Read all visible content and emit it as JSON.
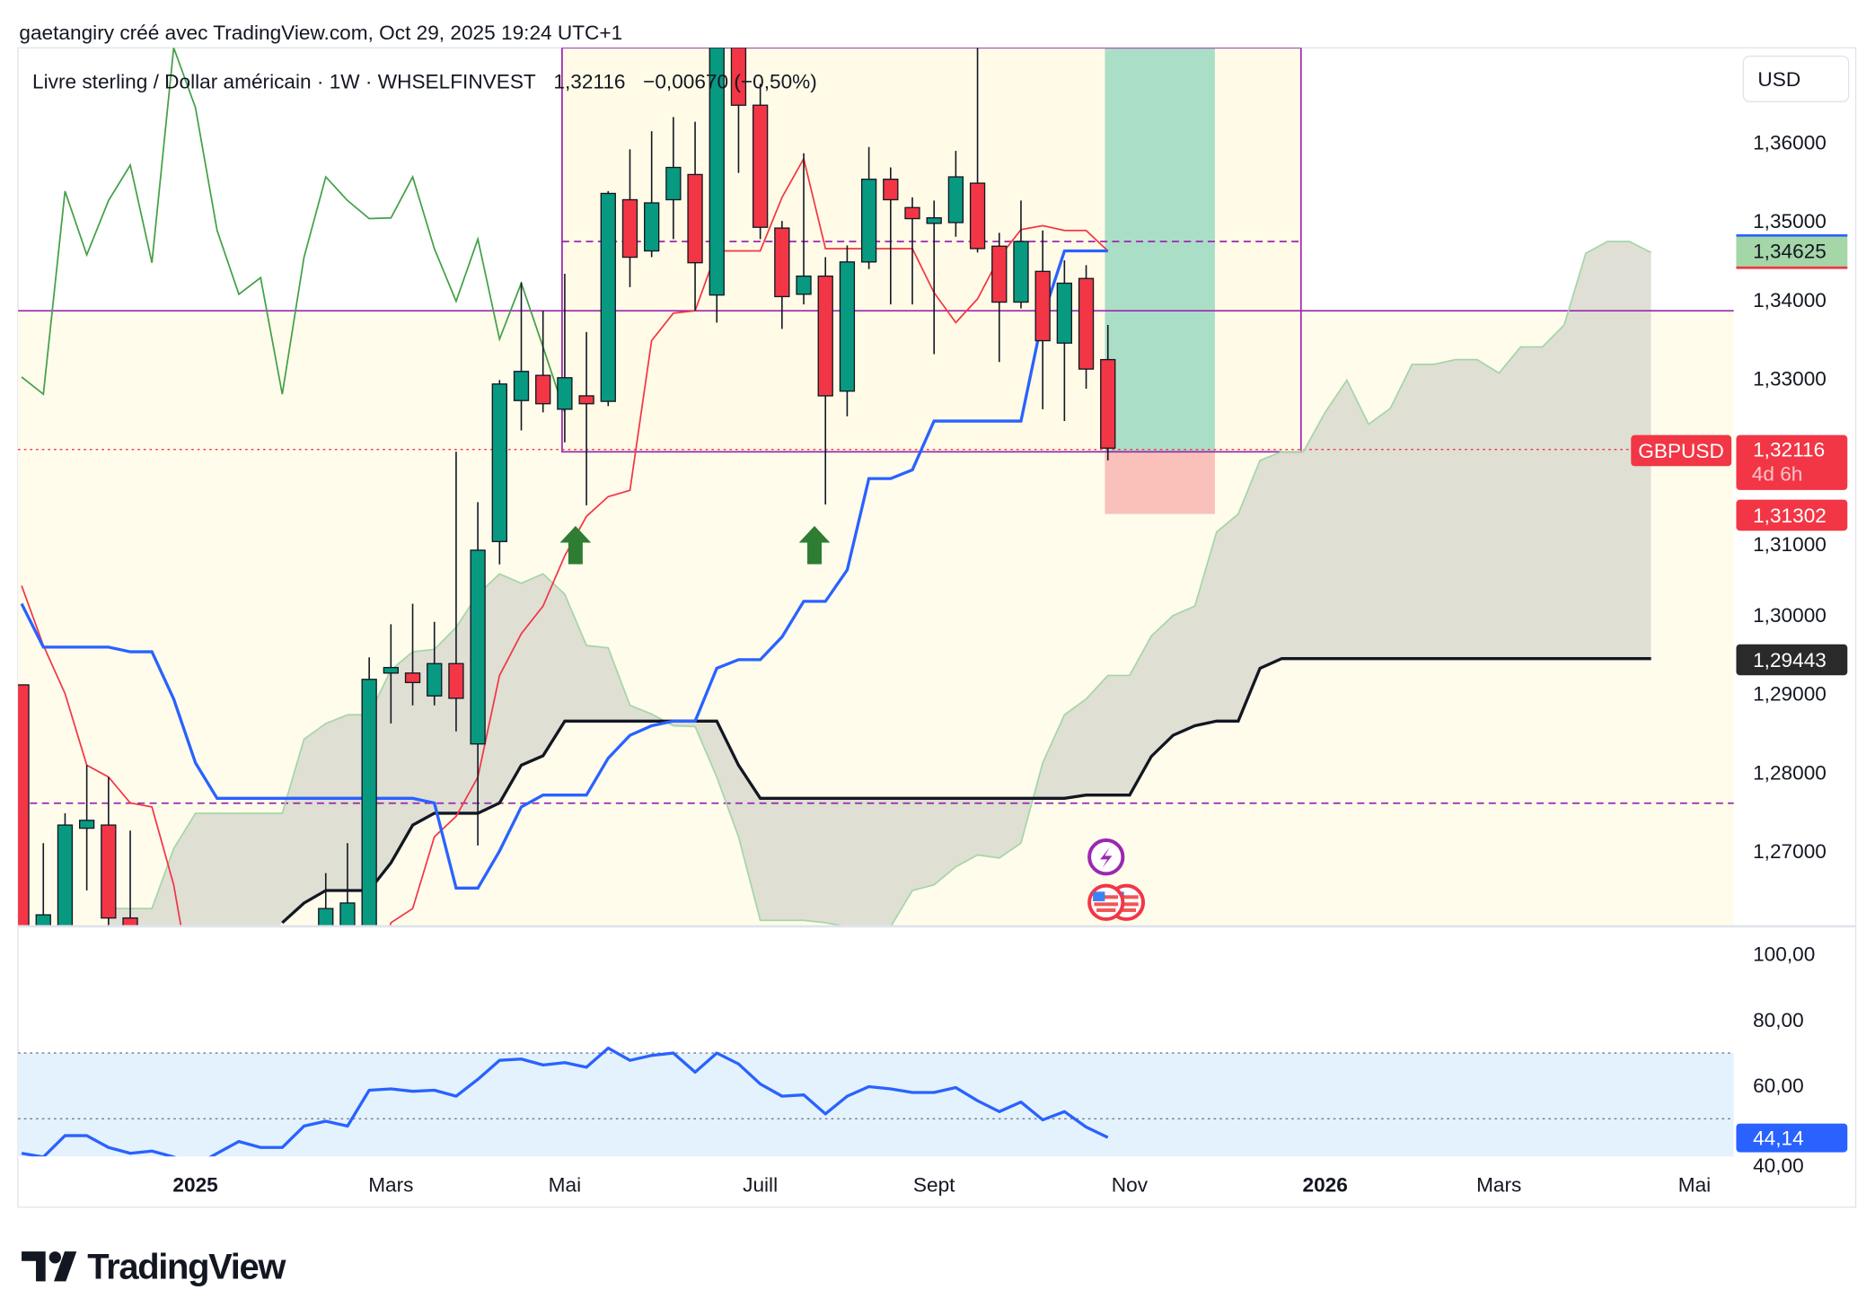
{
  "header": {
    "credit": "gaetangiry créé avec TradingView.com, Oct 29, 2025 19:24 UTC+1",
    "symbol_line": "Livre sterling / Dollar américain · 1W · WHSELFINVEST",
    "last_price": "1,32116",
    "change": "−0,00670 (−0,50%)"
  },
  "price_axis": {
    "currency": "USD",
    "ticks": [
      "1,36000",
      "1,35000",
      "1,34000",
      "1,33000",
      "1,31000",
      "1,30000",
      "1,29000",
      "1,28000",
      "1,27000"
    ],
    "tick_values": [
      1.36,
      1.35,
      1.34,
      1.33,
      1.31,
      1.3,
      1.29,
      1.28,
      1.27
    ],
    "labels": {
      "symbol": "GBPUSD",
      "current": "1,32116",
      "countdown": "4d 6h",
      "stop": "1,31302",
      "target": "1,34625",
      "span_b": "1,29443"
    }
  },
  "rsi_axis": {
    "ticks": [
      "100,00",
      "80,00",
      "60,00",
      "40,00"
    ],
    "tick_values": [
      100,
      80,
      60,
      40
    ],
    "current": "44,14"
  },
  "time_axis": [
    {
      "label": "2025",
      "bold": true,
      "i": 8
    },
    {
      "label": "Mars",
      "bold": false,
      "i": 17
    },
    {
      "label": "Mai",
      "bold": false,
      "i": 25
    },
    {
      "label": "Juill",
      "bold": false,
      "i": 34
    },
    {
      "label": "Sept",
      "bold": false,
      "i": 42
    },
    {
      "label": "Nov",
      "bold": false,
      "i": 51
    },
    {
      "label": "2026",
      "bold": true,
      "i": 60
    },
    {
      "label": "Mars",
      "bold": false,
      "i": 68
    },
    {
      "label": "Mai",
      "bold": false,
      "i": 77
    }
  ],
  "colors": {
    "up": "#089981",
    "down": "#f23645",
    "tenkan": "#f23645",
    "kijun": "#2962ff",
    "chikou": "#43a047",
    "span_a": "#a5d6a7",
    "span_b": "#131722",
    "cloud": "#dcdcd2",
    "rsi": "#2962ff",
    "purple": "#9c27b0"
  },
  "logo": "TradingView",
  "chart_data": {
    "type": "candlestick",
    "symbol": "GBPUSD",
    "interval": "1W",
    "candles": [
      [
        0,
        1.2911,
        1.2911,
        1.25,
        1.25
      ],
      [
        1,
        1.2604,
        1.271,
        1.25,
        1.2619
      ],
      [
        2,
        1.2604,
        1.2748,
        1.25,
        1.2733
      ],
      [
        3,
        1.2729,
        1.2809,
        1.265,
        1.2739
      ],
      [
        4,
        1.2733,
        1.2794,
        1.2604,
        1.2615
      ],
      [
        5,
        1.2615,
        1.2726,
        1.25,
        1.256
      ],
      [
        14,
        1.2604,
        1.2672,
        1.255,
        1.2627
      ],
      [
        15,
        1.2604,
        1.271,
        1.255,
        1.2634
      ],
      [
        16,
        1.2604,
        1.2946,
        1.255,
        1.2918
      ],
      [
        17,
        1.2926,
        1.2988,
        1.2862,
        1.2933
      ],
      [
        18,
        1.2926,
        1.3014,
        1.2885,
        1.2914
      ],
      [
        19,
        1.2897,
        1.2991,
        1.2885,
        1.2938
      ],
      [
        20,
        1.2938,
        1.3207,
        1.2852,
        1.2894
      ],
      [
        21,
        1.2836,
        1.3143,
        1.2707,
        1.3082
      ],
      [
        22,
        1.3093,
        1.3298,
        1.3064,
        1.3293
      ],
      [
        23,
        1.3272,
        1.3422,
        1.3234,
        1.3309
      ],
      [
        24,
        1.3304,
        1.3386,
        1.3257,
        1.3268
      ],
      [
        25,
        1.3261,
        1.3433,
        1.3219,
        1.3301
      ],
      [
        26,
        1.3278,
        1.3359,
        1.3139,
        1.3268
      ],
      [
        27,
        1.3271,
        1.3538,
        1.3265,
        1.3535
      ],
      [
        28,
        1.3527,
        1.3591,
        1.3416,
        1.3454
      ],
      [
        29,
        1.3462,
        1.3614,
        1.3454,
        1.3523
      ],
      [
        30,
        1.3527,
        1.3632,
        1.3477,
        1.3568
      ],
      [
        31,
        1.3559,
        1.3626,
        1.3386,
        1.3447
      ],
      [
        32,
        1.3406,
        1.372,
        1.3371,
        1.372
      ],
      [
        33,
        1.372,
        1.372,
        1.3561,
        1.3647
      ],
      [
        34,
        1.3647,
        1.3674,
        1.3477,
        1.3492
      ],
      [
        35,
        1.3491,
        1.35,
        1.3363,
        1.3404
      ],
      [
        36,
        1.3407,
        1.3586,
        1.3394,
        1.343
      ],
      [
        37,
        1.343,
        1.3454,
        1.314,
        1.3278
      ],
      [
        38,
        1.3284,
        1.3469,
        1.3252,
        1.3448
      ],
      [
        39,
        1.3448,
        1.3594,
        1.3439,
        1.3553
      ],
      [
        40,
        1.3553,
        1.3568,
        1.3394,
        1.3527
      ],
      [
        41,
        1.3517,
        1.353,
        1.3394,
        1.3503
      ],
      [
        42,
        1.3497,
        1.3526,
        1.3331,
        1.3504
      ],
      [
        43,
        1.3498,
        1.3589,
        1.348,
        1.3556
      ],
      [
        44,
        1.3548,
        1.372,
        1.346,
        1.3465
      ],
      [
        45,
        1.3468,
        1.3485,
        1.3321,
        1.3397
      ],
      [
        46,
        1.3397,
        1.3526,
        1.3389,
        1.3474
      ],
      [
        47,
        1.3436,
        1.3488,
        1.3261,
        1.3348
      ],
      [
        48,
        1.3345,
        1.345,
        1.3246,
        1.3421
      ],
      [
        49,
        1.3427,
        1.3444,
        1.3287,
        1.3312
      ],
      [
        50,
        1.3324,
        1.3368,
        1.3196,
        1.32116
      ]
    ],
    "tenkan": [
      [
        0,
        1.3037
      ],
      [
        1,
        1.2961
      ],
      [
        2,
        1.29
      ],
      [
        3,
        1.2809
      ],
      [
        4,
        1.2794
      ],
      [
        5,
        1.2761
      ],
      [
        6,
        1.2756
      ],
      [
        7,
        1.2657
      ],
      [
        8,
        1.25
      ],
      [
        16,
        1.25
      ],
      [
        17,
        1.2609
      ],
      [
        18,
        1.2627
      ],
      [
        19,
        1.2718
      ],
      [
        20,
        1.2744
      ],
      [
        21,
        1.2794
      ],
      [
        22,
        1.2923
      ],
      [
        23,
        1.2976
      ],
      [
        24,
        1.3011
      ],
      [
        25,
        1.3075
      ],
      [
        26,
        1.3125
      ],
      [
        27,
        1.315
      ],
      [
        28,
        1.3158
      ],
      [
        29,
        1.3348
      ],
      [
        30,
        1.3383
      ],
      [
        31,
        1.3386
      ],
      [
        32,
        1.3462
      ],
      [
        33,
        1.3462
      ],
      [
        34,
        1.3462
      ],
      [
        35,
        1.353
      ],
      [
        36,
        1.3579
      ],
      [
        37,
        1.3465
      ],
      [
        38,
        1.3465
      ],
      [
        39,
        1.3465
      ],
      [
        40,
        1.3465
      ],
      [
        41,
        1.3465
      ],
      [
        42,
        1.3409
      ],
      [
        43,
        1.3371
      ],
      [
        44,
        1.3401
      ],
      [
        45,
        1.3454
      ],
      [
        46,
        1.3489
      ],
      [
        47,
        1.3494
      ],
      [
        48,
        1.3488
      ],
      [
        49,
        1.3488
      ],
      [
        50,
        1.3462
      ]
    ],
    "kijun": [
      [
        0,
        1.3014
      ],
      [
        1,
        1.2959
      ],
      [
        4,
        1.2959
      ],
      [
        5,
        1.2953
      ],
      [
        6,
        1.2953
      ],
      [
        7,
        1.2893
      ],
      [
        8,
        1.2812
      ],
      [
        9,
        1.2767
      ],
      [
        18,
        1.2767
      ],
      [
        19,
        1.2761
      ],
      [
        20,
        1.2653
      ],
      [
        21,
        1.2653
      ],
      [
        22,
        1.27
      ],
      [
        23,
        1.2756
      ],
      [
        24,
        1.2771
      ],
      [
        26,
        1.2771
      ],
      [
        27,
        1.2818
      ],
      [
        28,
        1.2847
      ],
      [
        29,
        1.2859
      ],
      [
        30,
        1.2865
      ],
      [
        31,
        1.2865
      ],
      [
        32,
        1.2932
      ],
      [
        33,
        1.2943
      ],
      [
        34,
        1.2943
      ],
      [
        35,
        1.2972
      ],
      [
        36,
        1.3017
      ],
      [
        37,
        1.3017
      ],
      [
        38,
        1.3057
      ],
      [
        39,
        1.3173
      ],
      [
        40,
        1.3173
      ],
      [
        41,
        1.3184
      ],
      [
        42,
        1.3246
      ],
      [
        46,
        1.3246
      ],
      [
        47,
        1.3378
      ],
      [
        48,
        1.3462
      ],
      [
        50,
        1.3462
      ]
    ],
    "chikou": [
      [
        0,
        1.3302
      ],
      [
        1,
        1.328
      ],
      [
        2,
        1.3538
      ],
      [
        3,
        1.3457
      ],
      [
        4,
        1.3526
      ],
      [
        5,
        1.3571
      ],
      [
        6,
        1.3447
      ],
      [
        7,
        1.372
      ],
      [
        8,
        1.3644
      ],
      [
        9,
        1.3488
      ],
      [
        10,
        1.3407
      ],
      [
        11,
        1.3428
      ],
      [
        12,
        1.328
      ],
      [
        13,
        1.3454
      ],
      [
        14,
        1.3556
      ],
      [
        15,
        1.3526
      ],
      [
        16,
        1.3503
      ],
      [
        17,
        1.3504
      ],
      [
        18,
        1.3556
      ],
      [
        19,
        1.3465
      ],
      [
        20,
        1.3398
      ],
      [
        21,
        1.3477
      ],
      [
        22,
        1.335
      ],
      [
        23,
        1.3421
      ],
      [
        24,
        1.334
      ],
      [
        25,
        1.3257
      ]
    ],
    "span_a": [
      [
        4,
        1.2627
      ],
      [
        5,
        1.2627
      ],
      [
        6,
        1.2627
      ],
      [
        7,
        1.2703
      ],
      [
        8,
        1.2748
      ],
      [
        12,
        1.2748
      ],
      [
        13,
        1.2842
      ],
      [
        14,
        1.2862
      ],
      [
        15,
        1.2873
      ],
      [
        16,
        1.2873
      ],
      [
        17,
        1.293
      ],
      [
        18,
        1.2953
      ],
      [
        19,
        1.2956
      ],
      [
        20,
        1.2984
      ],
      [
        21,
        1.3026
      ],
      [
        22,
        1.3052
      ],
      [
        23,
        1.304
      ],
      [
        24,
        1.3052
      ],
      [
        25,
        1.3026
      ],
      [
        26,
        1.2961
      ],
      [
        27,
        1.2958
      ],
      [
        28,
        1.2885
      ],
      [
        29,
        1.2874
      ],
      [
        30,
        1.2859
      ],
      [
        31,
        1.2858
      ],
      [
        32,
        1.2794
      ],
      [
        33,
        1.2718
      ],
      [
        34,
        1.2612
      ],
      [
        35,
        1.2612
      ],
      [
        36,
        1.2612
      ],
      [
        37,
        1.2609
      ],
      [
        38,
        1.2604
      ],
      [
        40,
        1.2604
      ],
      [
        41,
        1.265
      ],
      [
        42,
        1.2657
      ],
      [
        43,
        1.268
      ],
      [
        44,
        1.2695
      ],
      [
        45,
        1.2691
      ],
      [
        46,
        1.271
      ],
      [
        47,
        1.2812
      ],
      [
        48,
        1.2873
      ],
      [
        49,
        1.2893
      ],
      [
        50,
        1.2923
      ],
      [
        51,
        1.2923
      ],
      [
        52,
        1.2973
      ],
      [
        53,
        1.2999
      ],
      [
        54,
        1.3011
      ],
      [
        55,
        1.3105
      ],
      [
        56,
        1.3128
      ],
      [
        57,
        1.3196
      ],
      [
        58,
        1.3207
      ],
      [
        59,
        1.3207
      ],
      [
        60,
        1.3257
      ],
      [
        61,
        1.3298
      ],
      [
        62,
        1.3242
      ],
      [
        63,
        1.3262
      ],
      [
        64,
        1.3318
      ],
      [
        65,
        1.3318
      ],
      [
        66,
        1.3324
      ],
      [
        67,
        1.3324
      ],
      [
        68,
        1.3307
      ],
      [
        69,
        1.334
      ],
      [
        70,
        1.334
      ],
      [
        71,
        1.3368
      ],
      [
        72,
        1.3459
      ],
      [
        73,
        1.3474
      ],
      [
        74,
        1.3474
      ],
      [
        75,
        1.346
      ]
    ],
    "span_b": [
      [
        12,
        1.2609
      ],
      [
        13,
        1.2634
      ],
      [
        14,
        1.265
      ],
      [
        16,
        1.265
      ],
      [
        17,
        1.2685
      ],
      [
        18,
        1.2733
      ],
      [
        19,
        1.2748
      ],
      [
        21,
        1.2748
      ],
      [
        22,
        1.2761
      ],
      [
        23,
        1.2809
      ],
      [
        24,
        1.2821
      ],
      [
        25,
        1.2865
      ],
      [
        32,
        1.2865
      ],
      [
        33,
        1.2809
      ],
      [
        34,
        1.2767
      ],
      [
        48,
        1.2767
      ],
      [
        49,
        1.2771
      ],
      [
        51,
        1.2771
      ],
      [
        52,
        1.282
      ],
      [
        53,
        1.2847
      ],
      [
        54,
        1.2859
      ],
      [
        55,
        1.2865
      ],
      [
        56,
        1.2865
      ],
      [
        57,
        1.2932
      ],
      [
        58,
        1.29443
      ],
      [
        75,
        1.29443
      ]
    ],
    "rsi": [
      [
        0,
        39.3
      ],
      [
        1,
        38.2
      ],
      [
        2,
        44.7
      ],
      [
        3,
        44.7
      ],
      [
        4,
        41.1
      ],
      [
        5,
        39.3
      ],
      [
        6,
        40.0
      ],
      [
        7,
        38.2
      ],
      [
        8,
        35.6
      ],
      [
        9,
        39.3
      ],
      [
        10,
        42.9
      ],
      [
        11,
        41.1
      ],
      [
        12,
        41.1
      ],
      [
        13,
        47.6
      ],
      [
        14,
        49.1
      ],
      [
        15,
        47.6
      ],
      [
        16,
        58.5
      ],
      [
        17,
        58.9
      ],
      [
        18,
        58.2
      ],
      [
        19,
        58.5
      ],
      [
        20,
        56.7
      ],
      [
        21,
        61.8
      ],
      [
        22,
        67.6
      ],
      [
        23,
        68.0
      ],
      [
        24,
        66.2
      ],
      [
        25,
        66.9
      ],
      [
        26,
        65.5
      ],
      [
        27,
        71.3
      ],
      [
        28,
        67.6
      ],
      [
        29,
        69.1
      ],
      [
        30,
        69.8
      ],
      [
        31,
        64.0
      ],
      [
        32,
        69.8
      ],
      [
        33,
        66.5
      ],
      [
        34,
        60.4
      ],
      [
        35,
        56.7
      ],
      [
        36,
        57.1
      ],
      [
        37,
        51.3
      ],
      [
        38,
        56.7
      ],
      [
        39,
        59.6
      ],
      [
        40,
        58.9
      ],
      [
        41,
        57.8
      ],
      [
        42,
        57.8
      ],
      [
        43,
        59.3
      ],
      [
        44,
        55.3
      ],
      [
        45,
        52.0
      ],
      [
        46,
        54.9
      ],
      [
        47,
        49.5
      ],
      [
        48,
        52.0
      ],
      [
        49,
        47.3
      ],
      [
        50,
        44.14
      ]
    ],
    "rsi_bands": [
      70,
      30
    ],
    "signals_up": [
      25,
      36
    ],
    "levels": {
      "resistance": 1.3386,
      "dashed_high": 1.3474,
      "dashed_low": 1.2761,
      "box_top": 1.372,
      "box_bottom": 1.32,
      "current": 1.32116,
      "stop": 1.31302,
      "target": 1.34625
    },
    "ylim": [
      1.255,
      1.372
    ],
    "rsi_ylim": [
      40,
      100
    ]
  }
}
